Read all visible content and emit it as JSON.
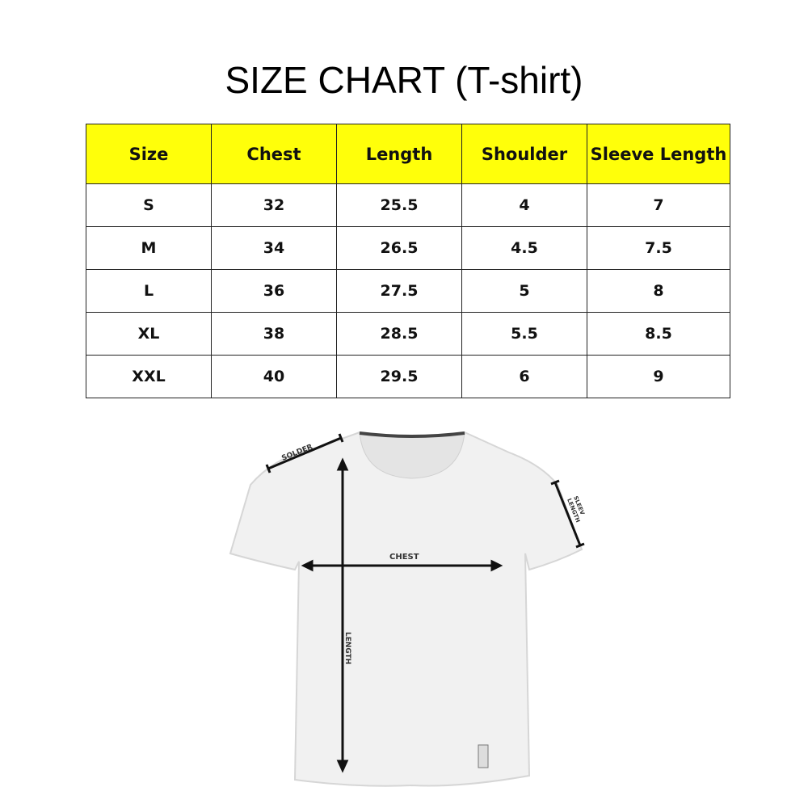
{
  "title": "SIZE CHART (T-shirt)",
  "table": {
    "headers": [
      "Size",
      "Chest",
      "Length",
      "Shoulder",
      "Sleeve Length"
    ],
    "rows": [
      [
        "S",
        "32",
        "25.5",
        "4",
        "7"
      ],
      [
        "M",
        "34",
        "26.5",
        "4.5",
        "7.5"
      ],
      [
        "L",
        "36",
        "27.5",
        "5",
        "8"
      ],
      [
        "XL",
        "38",
        "28.5",
        "5.5",
        "8.5"
      ],
      [
        "XXL",
        "40",
        "29.5",
        "6",
        "9"
      ]
    ],
    "header_color": "#ffff0a"
  },
  "diagram": {
    "labels": {
      "shoulder": "SOLDER",
      "sleeve_line1": "SLEEV",
      "sleeve_line2": "LENGTH",
      "chest": "CHEST",
      "length": "LENGTH"
    }
  }
}
